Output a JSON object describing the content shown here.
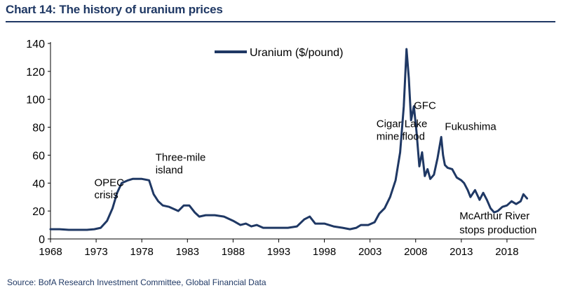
{
  "title": "Chart 14: The history of uranium prices",
  "source": "Source: BofA Research Investment Committee, Global Financial Data",
  "colors": {
    "series": "#1f3864",
    "title": "#1f3864",
    "axis": "#000000",
    "text": "#000000"
  },
  "chart_data": {
    "type": "line",
    "title": "Chart 14: The history of uranium prices",
    "xlabel": "",
    "ylabel": "",
    "xlim": [
      1968,
      2021
    ],
    "ylim": [
      0,
      140
    ],
    "grid": false,
    "legend": "top-center",
    "xticks": [
      1968,
      1973,
      1978,
      1983,
      1988,
      1993,
      1998,
      2003,
      2008,
      2013,
      2018
    ],
    "yticks": [
      0,
      20,
      40,
      60,
      80,
      100,
      120,
      140
    ],
    "series": [
      {
        "name": "Uranium ($/pound)",
        "x": [
          1968,
          1969,
          1970,
          1971,
          1972,
          1972.8,
          1973.5,
          1974.2,
          1974.8,
          1975.3,
          1975.8,
          1976.5,
          1977,
          1978,
          1978.8,
          1979.3,
          1979.8,
          1980.3,
          1981,
          1982,
          1982.6,
          1983.2,
          1983.8,
          1984.3,
          1985,
          1986,
          1987,
          1988,
          1988.8,
          1989.4,
          1990,
          1990.6,
          1991.3,
          1992,
          1993,
          1994,
          1995,
          1995.8,
          1996.4,
          1997,
          1998,
          1999,
          2000,
          2000.8,
          2001.5,
          2002,
          2002.8,
          2003.5,
          2004,
          2004.6,
          2005.2,
          2005.8,
          2006.3,
          2006.7,
          2007,
          2007.25,
          2007.5,
          2007.8,
          2008.1,
          2008.4,
          2008.7,
          2009,
          2009.3,
          2009.6,
          2010,
          2010.4,
          2010.8,
          2011,
          2011.2,
          2011.5,
          2012,
          2012.5,
          2013,
          2013.3,
          2013.7,
          2014,
          2014.5,
          2015,
          2015.4,
          2015.8,
          2016.2,
          2016.6,
          2017,
          2017.5,
          2018,
          2018.5,
          2019,
          2019.5,
          2019.8,
          2020.2
        ],
        "values": [
          7,
          7,
          6.5,
          6.5,
          6.5,
          7,
          8,
          13,
          22,
          33,
          40,
          42,
          43,
          43,
          42,
          32,
          27,
          24,
          23,
          20,
          24,
          24,
          19,
          16,
          17,
          17,
          16,
          13,
          10,
          11,
          9,
          10,
          8,
          8,
          8,
          8,
          9,
          14,
          16,
          11,
          11,
          9,
          8,
          7,
          8,
          10,
          10,
          12,
          18,
          22,
          30,
          42,
          62,
          95,
          136,
          115,
          85,
          95,
          76,
          52,
          62,
          45,
          50,
          43,
          46,
          58,
          73,
          60,
          53,
          51,
          50,
          44,
          42,
          40,
          35,
          30,
          35,
          28,
          33,
          28,
          22,
          19,
          20,
          23,
          24,
          27,
          25,
          27,
          32,
          29
        ]
      }
    ],
    "annotations": [
      {
        "text": "OPEC",
        "x": 1972.8,
        "y": 38
      },
      {
        "text": "crisis",
        "x": 1972.8,
        "y": 29
      },
      {
        "text": "Three-mile",
        "x": 1979.5,
        "y": 56
      },
      {
        "text": "island",
        "x": 1979.5,
        "y": 47
      },
      {
        "text": "Cigar Lake",
        "x": 2003.7,
        "y": 80
      },
      {
        "text": "mine flood",
        "x": 2003.7,
        "y": 71
      },
      {
        "text": "GFC",
        "x": 2007.8,
        "y": 93
      },
      {
        "text": "Fukushima",
        "x": 2011.2,
        "y": 78
      },
      {
        "text": "McArthur River",
        "x": 2012.8,
        "y": 14
      },
      {
        "text": "stops production",
        "x": 2012.8,
        "y": 4
      }
    ]
  }
}
